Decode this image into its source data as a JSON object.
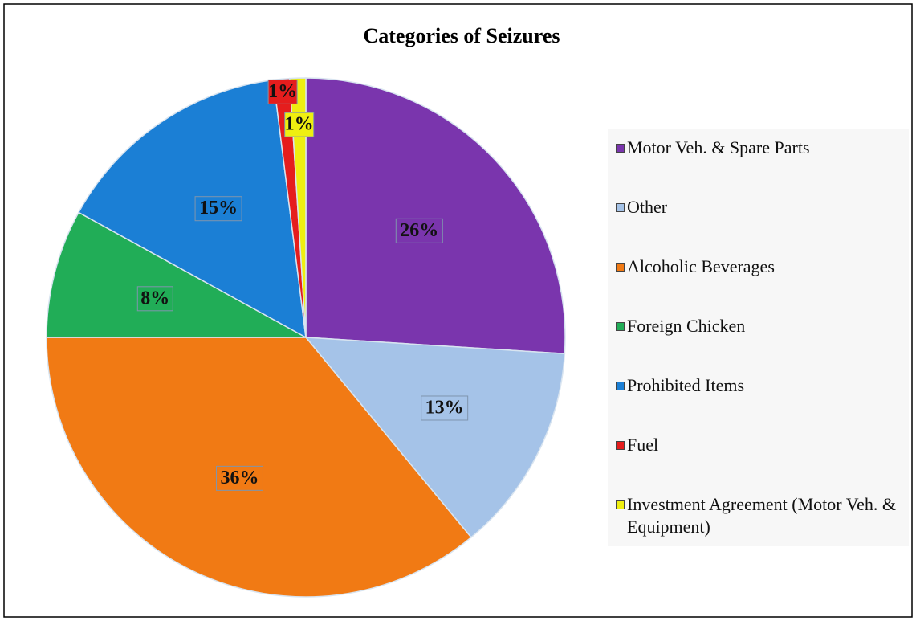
{
  "chart_data": {
    "type": "pie",
    "title": "Categories of Seizures",
    "categories": [
      "Motor Veh. & Spare Parts",
      "Other",
      "Alcoholic Beverages",
      "Foreign Chicken",
      "Prohibited Items",
      "Fuel",
      "Investment Agreement  (Motor Veh. & Equipment)"
    ],
    "values": [
      26,
      13,
      36,
      8,
      15,
      1,
      1
    ],
    "value_labels": [
      "26%",
      "13%",
      "36%",
      "8%",
      "15%",
      "1%",
      "1%"
    ],
    "colors": [
      "#7a35ad",
      "#a5c3e8",
      "#f17a14",
      "#21ad57",
      "#1b7fd5",
      "#e51d1d",
      "#efef10"
    ],
    "legend": "right"
  }
}
